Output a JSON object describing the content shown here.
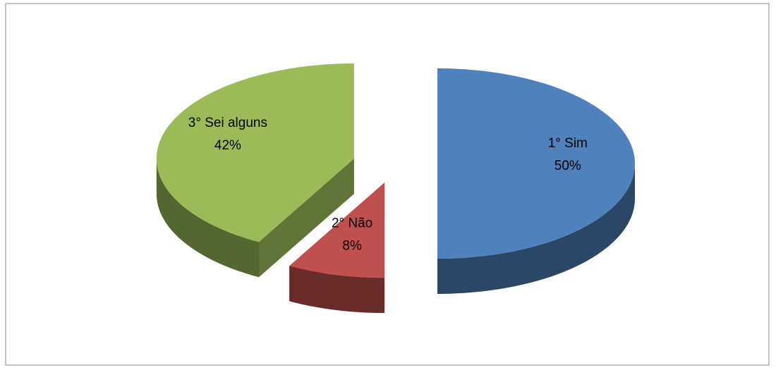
{
  "chart_data": {
    "type": "pie",
    "categories": [
      "1° Sim",
      "2° Não",
      "3° Sei alguns"
    ],
    "values": [
      50,
      8,
      42
    ],
    "value_labels": [
      "50%",
      "8%",
      "42%"
    ],
    "colors": [
      "#4f81bd",
      "#c0504d",
      "#9bbb59"
    ]
  }
}
